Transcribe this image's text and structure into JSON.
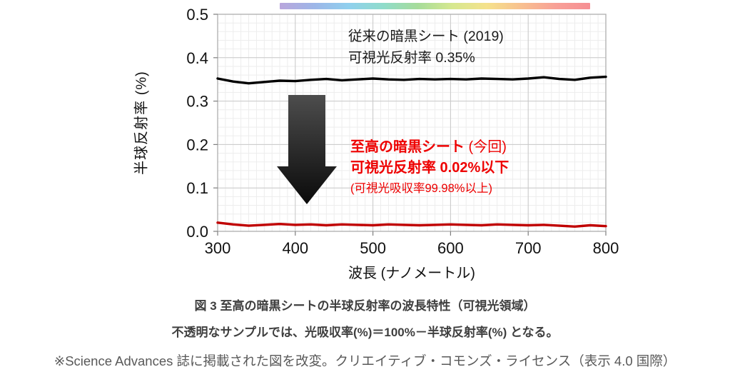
{
  "chart_data": {
    "type": "line",
    "title": "至高の暗黒シートの半球反射率の波長特性",
    "xlabel": "波長 (ナノメートル)",
    "ylabel": "半球反射率 (%)",
    "xlim": [
      300,
      800
    ],
    "ylim": [
      0,
      0.5
    ],
    "grid": true,
    "legend_position": "none (direct annotations)",
    "x_ticks": [
      300,
      400,
      500,
      600,
      700,
      800
    ],
    "x_tick_labels": [
      "300",
      "400",
      "500",
      "600",
      "700",
      "800"
    ],
    "y_ticks": [
      0,
      0.1,
      0.2,
      0.3,
      0.4,
      0.5
    ],
    "y_tick_labels": [
      "0.0",
      "0.1",
      "0.2",
      "0.3",
      "0.4",
      "0.5"
    ],
    "x": [
      300,
      320,
      340,
      360,
      380,
      400,
      420,
      440,
      460,
      480,
      500,
      520,
      540,
      560,
      580,
      600,
      620,
      640,
      660,
      680,
      700,
      720,
      740,
      760,
      780,
      800
    ],
    "series": [
      {
        "name": "従来の暗黒シート (2019)",
        "color": "#000000",
        "values": [
          0.352,
          0.345,
          0.341,
          0.344,
          0.347,
          0.346,
          0.349,
          0.351,
          0.348,
          0.35,
          0.352,
          0.35,
          0.349,
          0.351,
          0.35,
          0.351,
          0.35,
          0.352,
          0.351,
          0.35,
          0.352,
          0.355,
          0.351,
          0.349,
          0.354,
          0.356
        ]
      },
      {
        "name": "至高の暗黒シート (今回)",
        "color": "#c00000",
        "values": [
          0.02,
          0.016,
          0.013,
          0.015,
          0.017,
          0.015,
          0.016,
          0.014,
          0.016,
          0.015,
          0.014,
          0.016,
          0.015,
          0.014,
          0.015,
          0.016,
          0.015,
          0.014,
          0.016,
          0.015,
          0.014,
          0.015,
          0.013,
          0.011,
          0.014,
          0.012
        ]
      }
    ],
    "spectrum_bar": {
      "range_nm": [
        380,
        780
      ],
      "colors": [
        "#b9a6dc",
        "#9db6e8",
        "#8fd0ee",
        "#8fdccb",
        "#a6dc9a",
        "#d6e88f",
        "#f5e28c",
        "#f8c08f",
        "#f8a096",
        "#f68f94"
      ]
    },
    "annotations": {
      "conventional_line1": "従来の暗黒シート (2019)",
      "conventional_line2": "可視光反射率 0.35%",
      "supreme_name": "至高の暗黒シート",
      "supreme_paren": " (今回)",
      "supreme_line2": "可視光反射率 0.02%以下",
      "supreme_line3": "(可視光吸収率99.98%以上)"
    }
  },
  "colors": {
    "annotation_red": "#ee0000",
    "arrow_top": "#4d4d4d",
    "arrow_bottom": "#0a0a0a",
    "grid_minor": "#ededed",
    "grid_major": "#c9c9c9",
    "plot_border": "#b3b3b3"
  },
  "caption": {
    "line1": "図 3 至高の暗黒シートの半球反射率の波長特性（可視光領域）",
    "line2": "不透明なサンプルでは、光吸収率(%)＝100%－半球反射率(%) となる。",
    "line3": "※Science Advances 誌に掲載された図を改変。クリエイティブ・コモンズ・ライセンス（表示 4.0 国際）"
  }
}
